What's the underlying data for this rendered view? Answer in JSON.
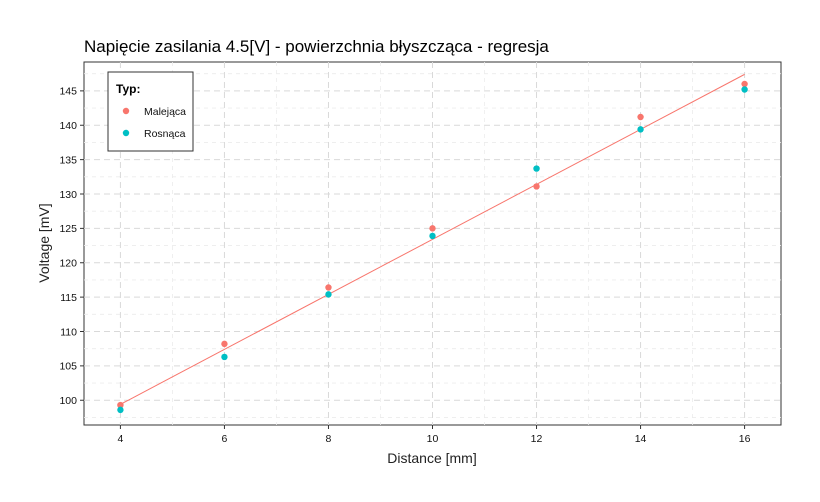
{
  "chart_data": {
    "type": "scatter",
    "title": "Napięcie zasilania 4.5[V] - powierzchnia błyszcząca - regresja",
    "xlabel": "Distance [mm]",
    "ylabel": "Voltage [mV]",
    "xlim": [
      3.3,
      16.7
    ],
    "ylim": [
      96.4,
      149.2
    ],
    "x_ticks": [
      4,
      6,
      8,
      10,
      12,
      14,
      16
    ],
    "y_ticks": [
      100,
      105,
      110,
      115,
      120,
      125,
      130,
      135,
      140,
      145
    ],
    "grid": true,
    "legend": {
      "title": "Typ:",
      "position": "top-left",
      "entries": [
        "Malejąca",
        "Rosnąca"
      ]
    },
    "series": [
      {
        "name": "Malejąca",
        "color": "#F8766D",
        "x": [
          4,
          6,
          8,
          10,
          12,
          14,
          16
        ],
        "y": [
          99.3,
          108.2,
          116.4,
          125.0,
          131.1,
          141.2,
          146.0
        ]
      },
      {
        "name": "Rosnąca",
        "color": "#00BFC4",
        "x": [
          4,
          6,
          8,
          10,
          12,
          14,
          16
        ],
        "y": [
          98.6,
          106.3,
          115.4,
          123.9,
          133.7,
          139.4,
          145.2
        ]
      }
    ],
    "regression": {
      "color": "#F8766D",
      "x": [
        4,
        16
      ],
      "y": [
        99.4,
        147.4
      ]
    }
  }
}
